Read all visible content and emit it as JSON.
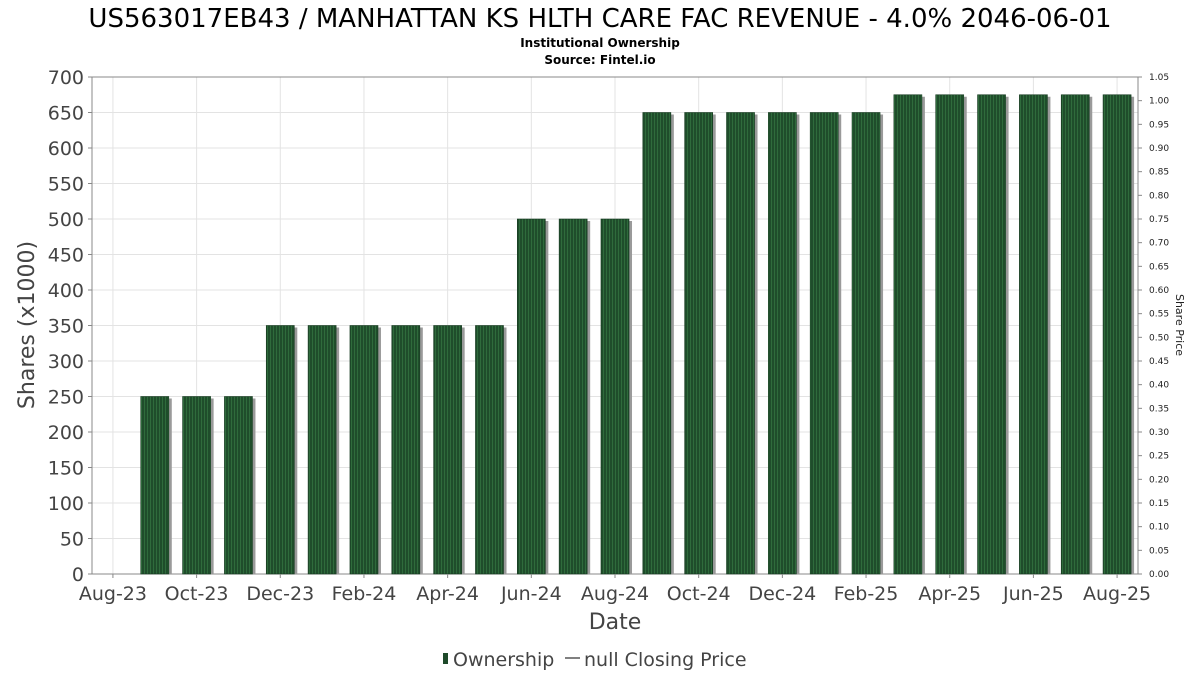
{
  "chart_data": {
    "type": "bar",
    "title": "US563017EB43 / MANHATTAN KS HLTH CARE FAC REVENUE - 4.0% 2046-06-01",
    "subtitle_lines": [
      "Institutional Ownership",
      "Source: Fintel.io"
    ],
    "xlabel": "Date",
    "ylabel": "Shares (x1000)",
    "y2label": "Share Price",
    "ylim": [
      0,
      700
    ],
    "y2lim": [
      0,
      1.05
    ],
    "y_ticks": [
      "0",
      "50",
      "100",
      "150",
      "200",
      "250",
      "300",
      "350",
      "400",
      "450",
      "500",
      "550",
      "600",
      "650",
      "700"
    ],
    "y2_ticks": [
      "0.00",
      "0.05",
      "0.10",
      "0.15",
      "0.20",
      "0.25",
      "0.30",
      "0.35",
      "0.40",
      "0.45",
      "0.50",
      "0.55",
      "0.60",
      "0.65",
      "0.70",
      "0.75",
      "0.80",
      "0.85",
      "0.90",
      "0.95",
      "1.00",
      "1.05"
    ],
    "x_tick_labels": [
      "Aug-23",
      "Oct-23",
      "Dec-23",
      "Feb-24",
      "Apr-24",
      "Jun-24",
      "Aug-24",
      "Oct-24",
      "Dec-24",
      "Feb-25",
      "Apr-25",
      "Jun-25",
      "Aug-25"
    ],
    "series": [
      {
        "name": "Ownership",
        "color": "#1e4a2a",
        "values": [
          0,
          250,
          250,
          250,
          350,
          350,
          350,
          350,
          350,
          350,
          500,
          500,
          500,
          650,
          650,
          650,
          650,
          650,
          650,
          675,
          675,
          675,
          675,
          675,
          675
        ]
      }
    ],
    "legend": {
      "position": "bottom",
      "items": [
        {
          "label": "Ownership",
          "marker": "bar",
          "color": "#1e4a2a"
        },
        {
          "label": "null Closing Price",
          "marker": "line",
          "color": "#555555"
        }
      ]
    },
    "grid": true
  }
}
